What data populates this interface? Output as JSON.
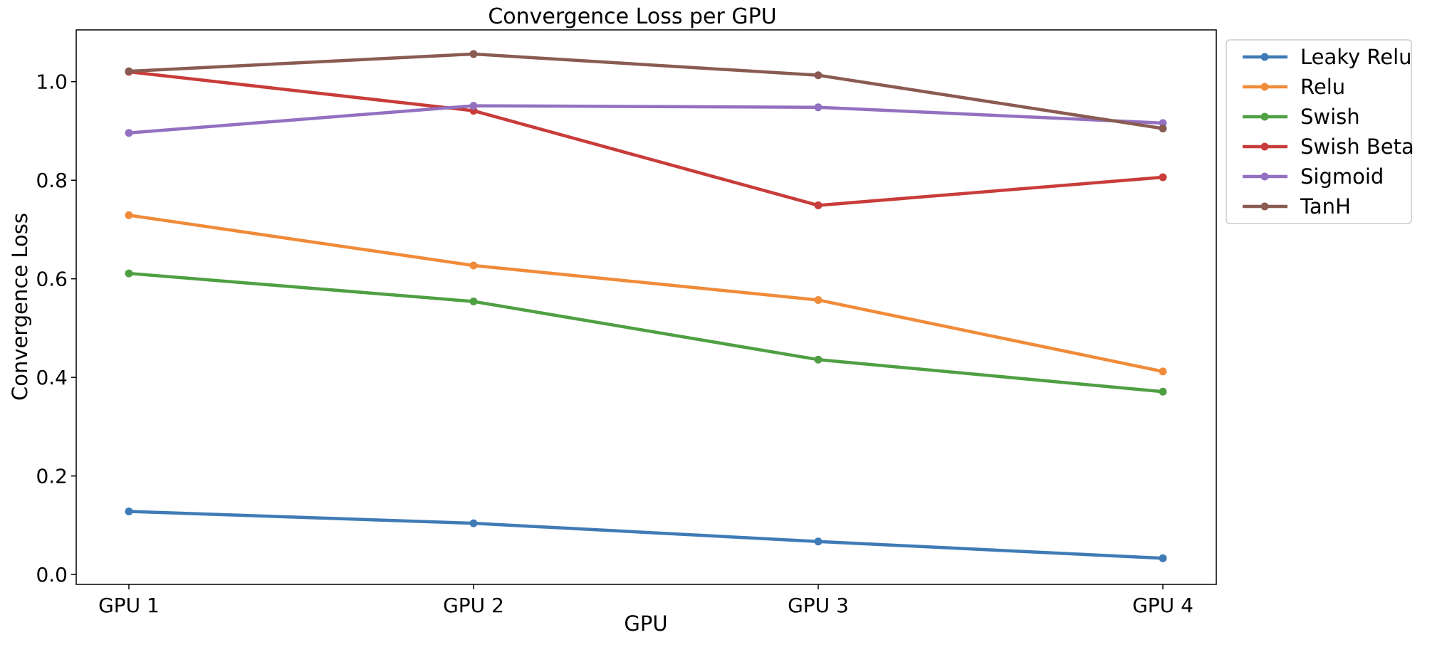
{
  "chart_data": {
    "type": "line",
    "title": "Convergence Loss per GPU",
    "xlabel": "GPU",
    "ylabel": "Convergence Loss",
    "categories": [
      "GPU 1",
      "GPU 2",
      "GPU 3",
      "GPU 4"
    ],
    "ylim": [
      -0.02,
      1.105
    ],
    "yticks": [
      0.0,
      0.2,
      0.4,
      0.6,
      0.8,
      1.0
    ],
    "ytick_labels": [
      "0.0",
      "0.2",
      "0.4",
      "0.6",
      "0.8",
      "1.0"
    ],
    "grid": false,
    "legend_position": "outside-upper-right",
    "series": [
      {
        "name": "Leaky Relu",
        "color": "#3f7bb6",
        "values": [
          0.128,
          0.104,
          0.067,
          0.033
        ]
      },
      {
        "name": "Relu",
        "color": "#f08b3a",
        "values": [
          0.729,
          0.627,
          0.557,
          0.412
        ]
      },
      {
        "name": "Swish",
        "color": "#4f9f43",
        "values": [
          0.611,
          0.554,
          0.436,
          0.371
        ]
      },
      {
        "name": "Swish Beta",
        "color": "#c83c3a",
        "values": [
          1.02,
          0.941,
          0.749,
          0.806
        ]
      },
      {
        "name": "Sigmoid",
        "color": "#9370c0",
        "values": [
          0.896,
          0.951,
          0.948,
          0.916
        ]
      },
      {
        "name": "TanH",
        "color": "#8a5b52",
        "values": [
          1.021,
          1.056,
          1.013,
          0.905
        ]
      }
    ]
  }
}
